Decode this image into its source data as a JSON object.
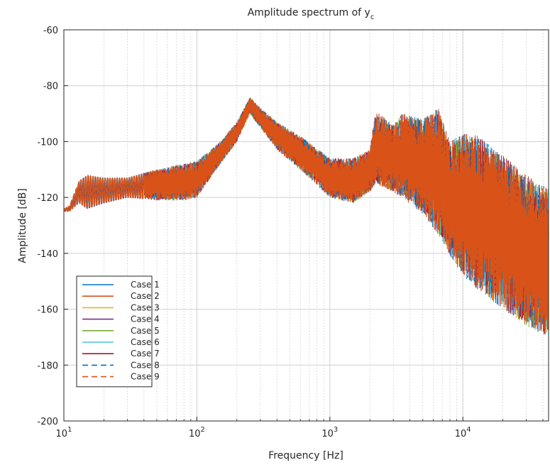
{
  "chart_data": {
    "type": "line",
    "title": "Amplitude spectrum of y",
    "title_subscript": "c",
    "xlabel": "Frequency [Hz]",
    "ylabel": "Amplitude [dB]",
    "xscale": "log",
    "xlim": [
      10,
      44100
    ],
    "ylim": [
      -200,
      -60
    ],
    "xticks": [
      10,
      100,
      1000,
      10000
    ],
    "xtick_labels": [
      {
        "base": "10",
        "exp": "1"
      },
      {
        "base": "10",
        "exp": "2"
      },
      {
        "base": "10",
        "exp": "3"
      },
      {
        "base": "10",
        "exp": "4"
      }
    ],
    "yticks": [
      -200,
      -180,
      -160,
      -140,
      -120,
      -100,
      -80,
      -60
    ],
    "ytick_labels": [
      "-200",
      "-180",
      "-160",
      "-140",
      "-120",
      "-100",
      "-80",
      "-60"
    ],
    "grid": true,
    "minor_grid": true,
    "legend_position": "bottom-left",
    "envelope": {
      "x": [
        10,
        11,
        13,
        15,
        20,
        30,
        50,
        80,
        100,
        150,
        200,
        250,
        300,
        400,
        600,
        1000,
        1500,
        2000,
        2200,
        3000,
        3500,
        5000,
        6500,
        8000,
        10000,
        13000,
        20000,
        30000,
        44100
      ],
      "upper": [
        -124,
        -123,
        -114,
        -112,
        -113,
        -113,
        -110,
        -108,
        -107,
        -100,
        -93,
        -84,
        -88,
        -93,
        -98,
        -106,
        -106,
        -103,
        -89,
        -94,
        -90,
        -92,
        -88,
        -100,
        -97,
        -98,
        -105,
        -112,
        -117
      ],
      "lower": [
        -125,
        -125,
        -122,
        -124,
        -122,
        -120,
        -121,
        -121,
        -120,
        -108,
        -100,
        -90,
        -95,
        -103,
        -110,
        -120,
        -122,
        -118,
        -115,
        -118,
        -120,
        -126,
        -133,
        -141,
        -148,
        -153,
        -160,
        -166,
        -170
      ]
    },
    "series": [
      {
        "name": "Case 1",
        "color": "#0072BD",
        "dash": "solid"
      },
      {
        "name": "Case 2",
        "color": "#D95319",
        "dash": "solid"
      },
      {
        "name": "Case 3",
        "color": "#EDB120",
        "dash": "solid"
      },
      {
        "name": "Case 4",
        "color": "#7E2F8E",
        "dash": "solid"
      },
      {
        "name": "Case 5",
        "color": "#77AC30",
        "dash": "solid"
      },
      {
        "name": "Case 6",
        "color": "#4DBEEE",
        "dash": "solid"
      },
      {
        "name": "Case 7",
        "color": "#A2142F",
        "dash": "solid"
      },
      {
        "name": "Case 8",
        "color": "#0072BD",
        "dash": "dashed"
      },
      {
        "name": "Case 9",
        "color": "#D95319",
        "dash": "dashed"
      }
    ]
  }
}
